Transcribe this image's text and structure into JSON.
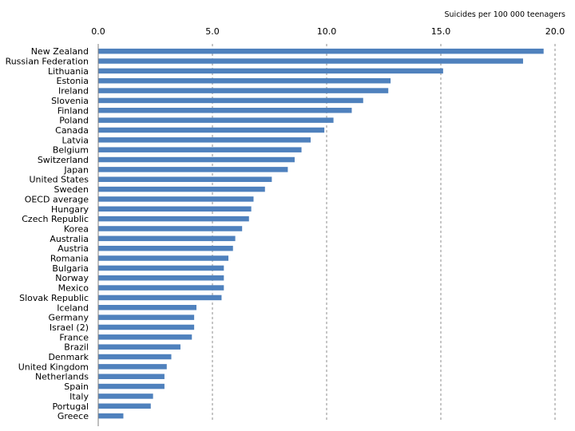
{
  "chart_data": {
    "type": "bar",
    "orientation": "horizontal",
    "title": "",
    "xlabel": "Suicides per 100 000 teenagers",
    "ylabel": "",
    "xlim": [
      0,
      20
    ],
    "xticks": [
      0,
      5,
      10,
      15,
      20
    ],
    "xtick_labels": [
      "0.0",
      "5.0",
      "10.0",
      "15.0",
      "20.0"
    ],
    "x_axis_position": "top",
    "grid": "vertical dashed",
    "bar_color": "#4F81BD",
    "categories": [
      "New Zealand",
      "Russian Federation",
      "Lithuania",
      "Estonia",
      "Ireland",
      "Slovenia",
      "Finland",
      "Poland",
      "Canada",
      "Latvia",
      "Belgium",
      "Switzerland",
      "Japan",
      "United States",
      "Sweden",
      "OECD average",
      "Hungary",
      "Czech Republic",
      "Korea",
      "Australia",
      "Austria",
      "Romania",
      "Bulgaria",
      "Norway",
      "Mexico",
      "Slovak Republic",
      "Iceland",
      "Germany",
      "Israel (2)",
      "France",
      "Brazil",
      "Denmark",
      "United Kingdom",
      "Netherlands",
      "Spain",
      "Italy",
      "Portugal",
      "Greece"
    ],
    "values": [
      19.5,
      18.6,
      15.1,
      12.8,
      12.7,
      11.6,
      11.1,
      10.3,
      9.9,
      9.3,
      8.9,
      8.6,
      8.3,
      7.6,
      7.3,
      6.8,
      6.7,
      6.6,
      6.3,
      6.0,
      5.9,
      5.7,
      5.5,
      5.5,
      5.5,
      5.4,
      4.3,
      4.2,
      4.2,
      4.1,
      3.6,
      3.2,
      3.0,
      2.9,
      2.9,
      2.4,
      2.3,
      1.1
    ]
  }
}
